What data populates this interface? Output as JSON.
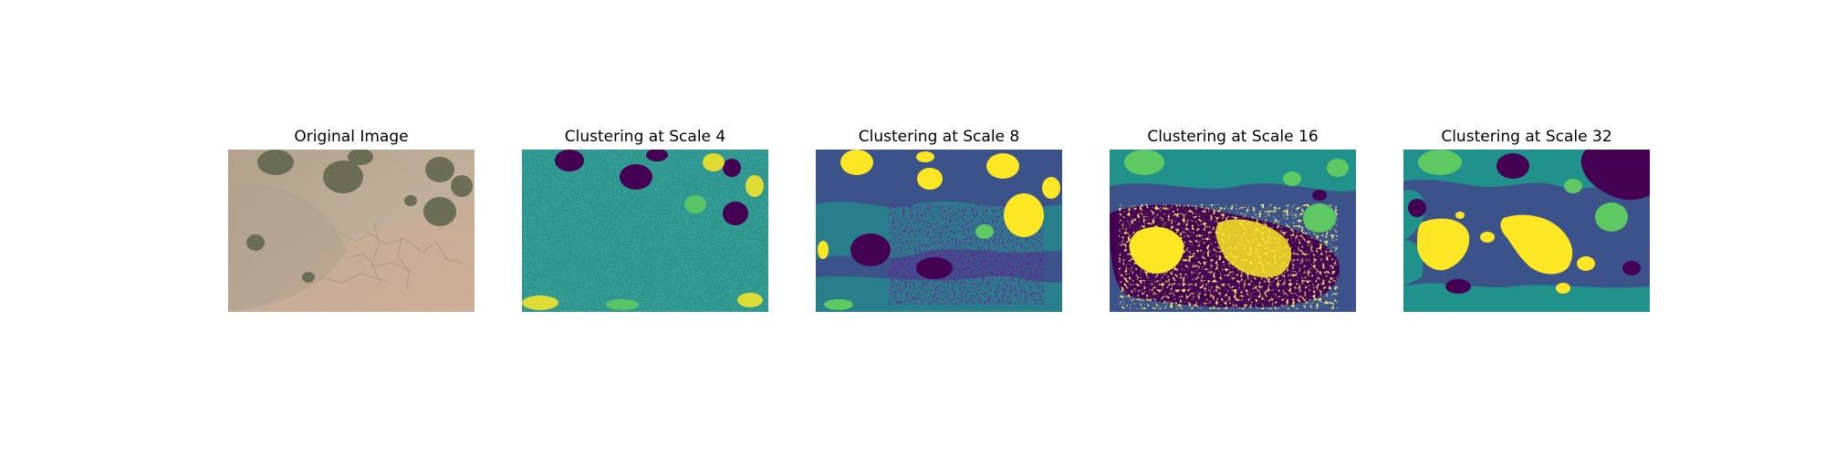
{
  "figure": {
    "panels": [
      {
        "title": "Original Image",
        "kind": "photo"
      },
      {
        "title": "Clustering at Scale 4",
        "kind": "cluster-map"
      },
      {
        "title": "Clustering at Scale 8",
        "kind": "cluster-map"
      },
      {
        "title": "Clustering at Scale 16",
        "kind": "cluster-map"
      },
      {
        "title": "Clustering at Scale 32",
        "kind": "cluster-map"
      }
    ]
  },
  "colors": {
    "cluster_dark_purple": "#440154",
    "cluster_blue": "#3b528b",
    "cluster_teal": "#21918c",
    "cluster_green": "#5ec962",
    "cluster_yellow": "#fde725",
    "soil_tan": "#c8b196",
    "soil_pink": "#d9b49a",
    "shrub_green": "#4f5a3c"
  }
}
